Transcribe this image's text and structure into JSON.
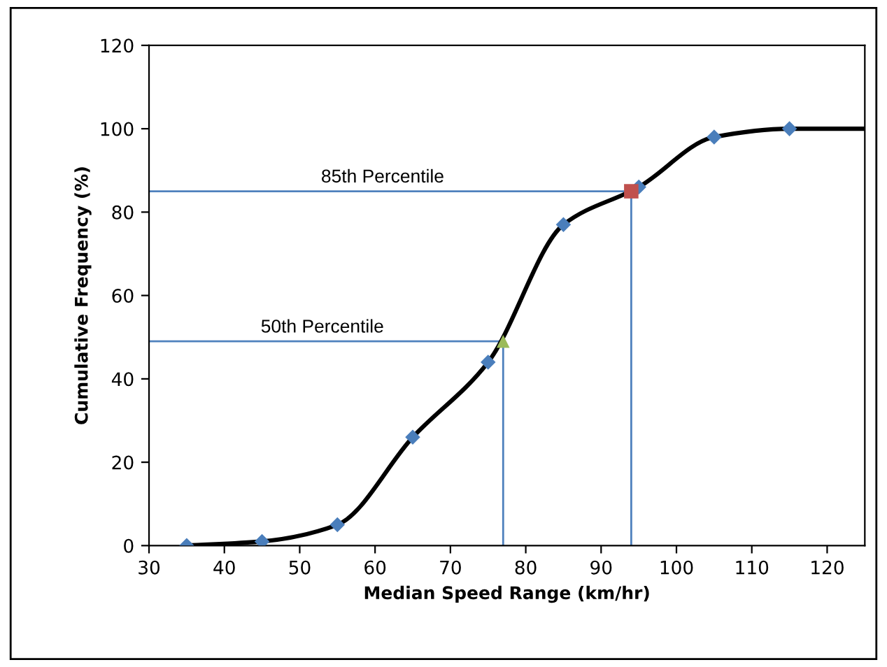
{
  "chart_data": {
    "type": "scatter",
    "xlabel": "Median Speed Range (km/hr)",
    "ylabel": "Cumulative Frequency (%)",
    "xlim": [
      30,
      125
    ],
    "xticks": [
      30,
      40,
      50,
      60,
      70,
      80,
      90,
      100,
      110,
      120
    ],
    "ylim": [
      0,
      120
    ],
    "yticks": [
      0,
      20,
      40,
      60,
      80,
      100,
      120
    ],
    "grid": false,
    "legend": false,
    "series": [
      {
        "type": "line",
        "color": "#4f81bd",
        "x": [
          30,
          77,
          77
        ],
        "values": [
          49,
          49,
          0
        ],
        "marker": "none"
      },
      {
        "type": "line",
        "color": "#4f81bd",
        "x": [
          30,
          94,
          94
        ],
        "values": [
          85,
          85,
          0
        ],
        "marker": "none"
      },
      {
        "type": "line",
        "color": "#000000",
        "x": [
          35,
          45,
          55,
          65,
          75,
          85,
          95,
          105,
          115,
          125
        ],
        "values": [
          0,
          1,
          5,
          26,
          44,
          77,
          86,
          98,
          100,
          100
        ],
        "marker": "none"
      },
      {
        "color": "#4a7ebb",
        "x": [
          35,
          45,
          55,
          65,
          75,
          85,
          95,
          105,
          115
        ],
        "values": [
          0,
          1,
          5,
          26,
          44,
          77,
          86,
          98,
          100
        ],
        "marker": "diamond"
      },
      {
        "color": "#9bbb59",
        "x": [
          77
        ],
        "values": [
          49
        ],
        "marker": "triangle"
      },
      {
        "color": "#c0504d",
        "x": [
          94
        ],
        "values": [
          85
        ],
        "marker": "square"
      }
    ],
    "annotations": [
      {
        "text": "50th Percentile",
        "x": 53,
        "y": 49
      },
      {
        "text": "85th Percentile",
        "x": 61,
        "y": 85
      }
    ]
  }
}
